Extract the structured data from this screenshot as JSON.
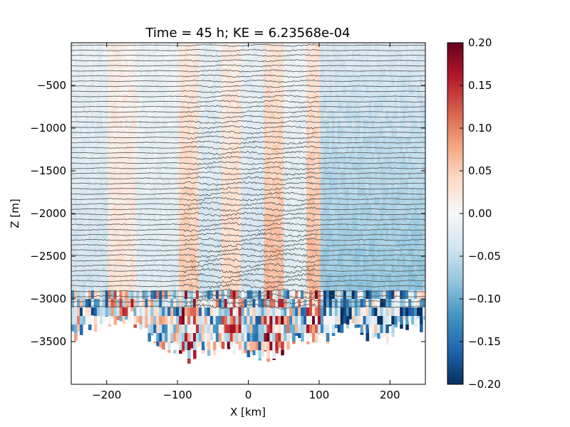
{
  "chart_data": {
    "type": "heatmap",
    "title": "Time = 45 h; KE = 6.23568e-04",
    "xlabel": "X [km]",
    "ylabel": "Z [m]",
    "xlim": [
      -250,
      250
    ],
    "ylim": [
      -4000,
      0
    ],
    "xticks": [
      -200,
      -100,
      0,
      100,
      200
    ],
    "xtick_labels": [
      "−200",
      "−100",
      "0",
      "100",
      "200"
    ],
    "yticks": [
      -500,
      -1000,
      -1500,
      -2000,
      -2500,
      -3000,
      -3500
    ],
    "ytick_labels": [
      "−500",
      "−1000",
      "−1500",
      "−2000",
      "−2500",
      "−3000",
      "−3500"
    ],
    "colorbar": {
      "colormap": "RdBu_r",
      "range": [
        -0.2,
        0.2
      ],
      "ticks": [
        0.2,
        0.15,
        0.1,
        0.05,
        0.0,
        -0.05,
        -0.1,
        -0.15,
        -0.2
      ],
      "tick_labels": [
        "0.20",
        "0.15",
        "0.10",
        "0.05",
        "0.00",
        "−0.05",
        "−0.10",
        "−0.15",
        "−0.20"
      ]
    },
    "field": {
      "x_range_km": [
        -250,
        250
      ],
      "bottom_depth_approx_m": [
        -3450,
        -3300,
        -3250,
        -3250,
        -3200,
        -3400,
        -3600,
        -3600,
        -3650,
        -3550,
        -3600,
        -3550,
        -3650,
        -3700,
        -3600,
        -3500,
        -3500,
        -3450,
        -3350,
        -3300,
        -3400,
        -3450,
        -3350,
        -3300,
        -3300
      ],
      "band_values": [
        {
          "x": [
            -250,
            -200
          ],
          "value": -0.03
        },
        {
          "x": [
            -200,
            -160
          ],
          "value": 0.02
        },
        {
          "x": [
            -160,
            -100
          ],
          "value": -0.02
        },
        {
          "x": [
            -100,
            -70
          ],
          "value": 0.04
        },
        {
          "x": [
            -70,
            -40
          ],
          "value": -0.03
        },
        {
          "x": [
            -40,
            -10
          ],
          "value": 0.03
        },
        {
          "x": [
            -10,
            20
          ],
          "value": -0.03
        },
        {
          "x": [
            20,
            50
          ],
          "value": 0.05
        },
        {
          "x": [
            50,
            80
          ],
          "value": -0.02
        },
        {
          "x": [
            80,
            100
          ],
          "value": 0.05
        },
        {
          "x": [
            100,
            250
          ],
          "value": -0.06
        }
      ]
    },
    "isopycnals": {
      "count": 52,
      "spacing_m": 60,
      "top_m": -30,
      "wavy_region_km": [
        -90,
        95
      ]
    },
    "grid": false
  }
}
